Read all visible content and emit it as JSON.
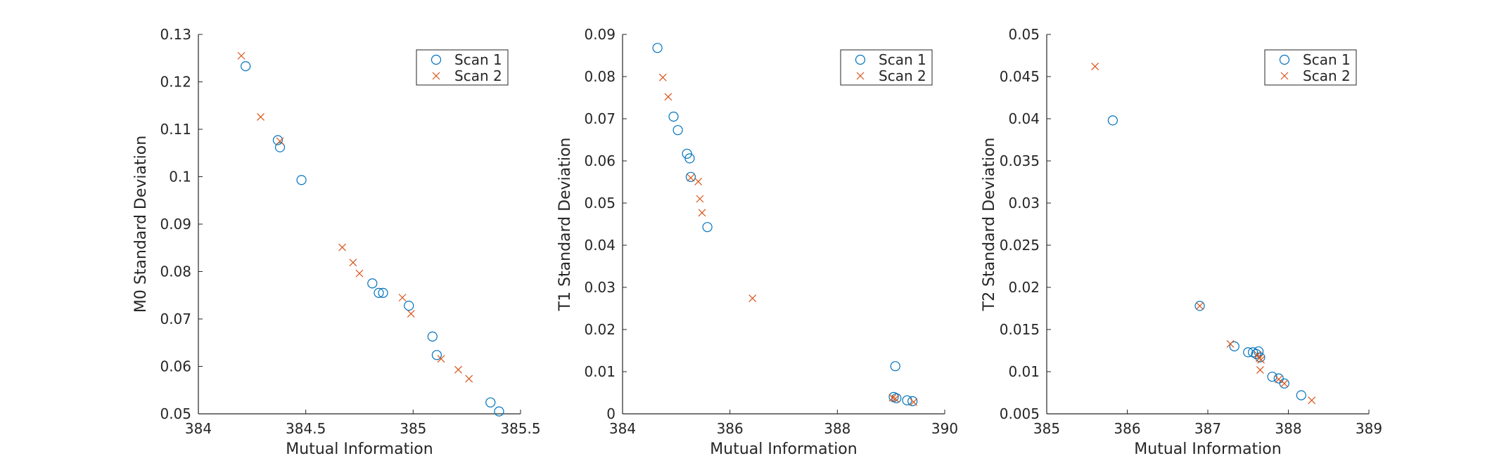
{
  "chart_data": [
    {
      "type": "scatter",
      "xlabel": "Mutual Information",
      "ylabel": "M0 Standard Deviation",
      "xlim": [
        384,
        385.5
      ],
      "ylim": [
        0.05,
        0.13
      ],
      "xticks": [
        384,
        384.5,
        385,
        385.5
      ],
      "xtick_labels": [
        "384",
        "384.5",
        "385",
        "385.5"
      ],
      "yticks": [
        0.05,
        0.06,
        0.07,
        0.08,
        0.09,
        0.1,
        0.11,
        0.12,
        0.13
      ],
      "ytick_labels": [
        "0.05",
        "0.06",
        "0.07",
        "0.08",
        "0.09",
        "0.1",
        "0.11",
        "0.12",
        "0.13"
      ],
      "legend_position": "top-right",
      "series": [
        {
          "name": "Scan 1",
          "marker": "circle",
          "color": "#0072BD",
          "points": [
            [
              384.22,
              0.1233
            ],
            [
              384.37,
              0.1077
            ],
            [
              384.38,
              0.1062
            ],
            [
              384.48,
              0.0993
            ],
            [
              384.81,
              0.0775
            ],
            [
              384.84,
              0.0755
            ],
            [
              384.86,
              0.0755
            ],
            [
              384.98,
              0.0728
            ],
            [
              385.09,
              0.0663
            ],
            [
              385.11,
              0.0624
            ],
            [
              385.36,
              0.0524
            ],
            [
              385.4,
              0.0505
            ]
          ]
        },
        {
          "name": "Scan 2",
          "marker": "x",
          "color": "#D95319",
          "points": [
            [
              384.2,
              0.1255
            ],
            [
              384.29,
              0.1126
            ],
            [
              384.38,
              0.1075
            ],
            [
              384.67,
              0.0851
            ],
            [
              384.72,
              0.0819
            ],
            [
              384.75,
              0.0796
            ],
            [
              384.95,
              0.0745
            ],
            [
              384.99,
              0.0711
            ],
            [
              385.13,
              0.0616
            ],
            [
              385.21,
              0.0593
            ],
            [
              385.26,
              0.0574
            ]
          ]
        }
      ]
    },
    {
      "type": "scatter",
      "xlabel": "Mutual Information",
      "ylabel": "T1 Standard Deviation",
      "xlim": [
        384,
        390
      ],
      "ylim": [
        0,
        0.09
      ],
      "xticks": [
        384,
        386,
        388,
        390
      ],
      "xtick_labels": [
        "384",
        "386",
        "388",
        "390"
      ],
      "yticks": [
        0,
        0.01,
        0.02,
        0.03,
        0.04,
        0.05,
        0.06,
        0.07,
        0.08,
        0.09
      ],
      "ytick_labels": [
        "0",
        "0.01",
        "0.02",
        "0.03",
        "0.04",
        "0.05",
        "0.06",
        "0.07",
        "0.08",
        "0.09"
      ],
      "legend_position": "top-right",
      "series": [
        {
          "name": "Scan 1",
          "marker": "circle",
          "color": "#0072BD",
          "points": [
            [
              384.65,
              0.0868
            ],
            [
              384.95,
              0.0705
            ],
            [
              385.03,
              0.0673
            ],
            [
              385.2,
              0.0617
            ],
            [
              385.25,
              0.0606
            ],
            [
              385.27,
              0.0562
            ],
            [
              385.58,
              0.0443
            ],
            [
              389.08,
              0.0113
            ],
            [
              389.05,
              0.004
            ],
            [
              389.1,
              0.0037
            ],
            [
              389.3,
              0.0032
            ],
            [
              389.4,
              0.003
            ]
          ]
        },
        {
          "name": "Scan 2",
          "marker": "x",
          "color": "#D95319",
          "points": [
            [
              384.75,
              0.0798
            ],
            [
              384.85,
              0.0752
            ],
            [
              385.27,
              0.056
            ],
            [
              385.41,
              0.0551
            ],
            [
              385.44,
              0.051
            ],
            [
              385.48,
              0.0477
            ],
            [
              386.42,
              0.0274
            ],
            [
              389.03,
              0.0038
            ],
            [
              389.08,
              0.0036
            ],
            [
              389.42,
              0.0028
            ]
          ]
        }
      ]
    },
    {
      "type": "scatter",
      "xlabel": "Mutual Information",
      "ylabel": "T2 Standard Deviation",
      "xlim": [
        385,
        389
      ],
      "ylim": [
        0.005,
        0.05
      ],
      "xticks": [
        385,
        386,
        387,
        388,
        389
      ],
      "xtick_labels": [
        "385",
        "386",
        "387",
        "388",
        "389"
      ],
      "yticks": [
        0.005,
        0.01,
        0.015,
        0.02,
        0.025,
        0.03,
        0.035,
        0.04,
        0.045,
        0.05
      ],
      "ytick_labels": [
        "0.005",
        "0.01",
        "0.015",
        "0.02",
        "0.025",
        "0.03",
        "0.035",
        "0.04",
        "0.045",
        "0.05"
      ],
      "legend_position": "top-right",
      "series": [
        {
          "name": "Scan 1",
          "marker": "circle",
          "color": "#0072BD",
          "points": [
            [
              385.82,
              0.0398
            ],
            [
              386.9,
              0.0178
            ],
            [
              387.33,
              0.013
            ],
            [
              387.5,
              0.0123
            ],
            [
              387.56,
              0.0123
            ],
            [
              387.6,
              0.0121
            ],
            [
              387.63,
              0.0124
            ],
            [
              387.65,
              0.0117
            ],
            [
              387.8,
              0.0094
            ],
            [
              387.88,
              0.0092
            ],
            [
              387.95,
              0.0086
            ],
            [
              388.16,
              0.0072
            ]
          ]
        },
        {
          "name": "Scan 2",
          "marker": "x",
          "color": "#D95319",
          "points": [
            [
              385.6,
              0.0462
            ],
            [
              386.9,
              0.0178
            ],
            [
              387.28,
              0.0133
            ],
            [
              387.62,
              0.012
            ],
            [
              387.64,
              0.0116
            ],
            [
              387.66,
              0.0114
            ],
            [
              387.65,
              0.0102
            ],
            [
              387.88,
              0.0091
            ],
            [
              387.95,
              0.0086
            ],
            [
              388.29,
              0.0066
            ]
          ]
        }
      ]
    }
  ]
}
